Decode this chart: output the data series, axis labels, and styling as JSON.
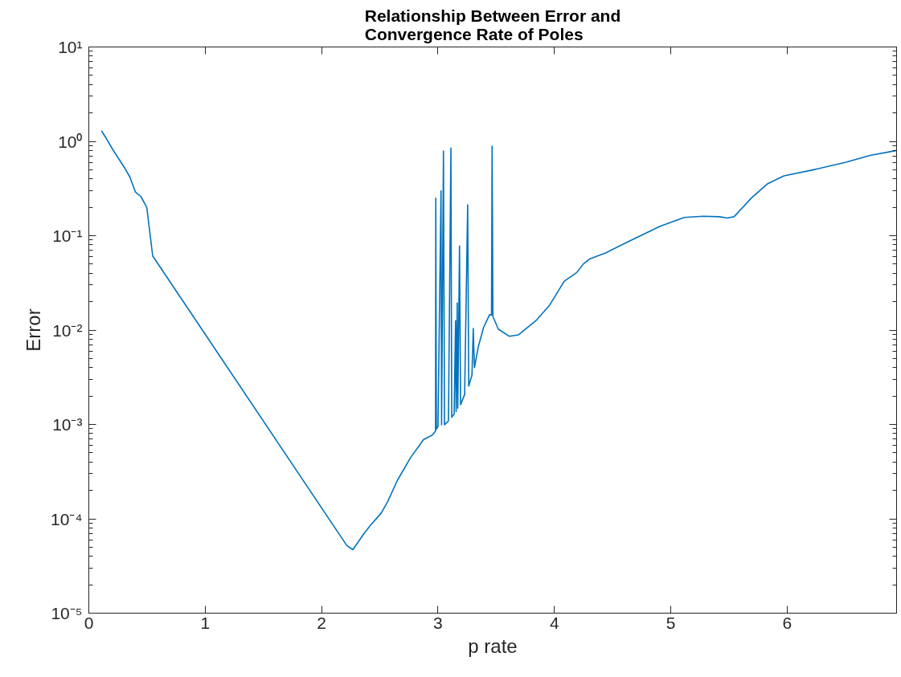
{
  "chart_data": {
    "type": "line",
    "title": "Relationship Between Error and\nConvergence Rate of Poles",
    "xlabel": "p rate",
    "ylabel": "Error",
    "log": "y",
    "grid": false,
    "marker": "none",
    "line_style": "solid",
    "xlim": [
      0,
      6.94
    ],
    "ylim": [
      1e-05,
      10
    ],
    "xticks": [
      0,
      1,
      2,
      3,
      4,
      5,
      6
    ],
    "yticks": [
      {
        "value": 1e-05,
        "label": "10⁻⁵"
      },
      {
        "value": 0.0001,
        "label": "10⁻⁴"
      },
      {
        "value": 0.001,
        "label": "10⁻³"
      },
      {
        "value": 0.01,
        "label": "10⁻²"
      },
      {
        "value": 0.1,
        "label": "10⁻¹"
      },
      {
        "value": 1,
        "label": "10⁰"
      },
      {
        "value": 10,
        "label": "10¹"
      }
    ],
    "series": [
      {
        "color": "#0072bd",
        "x": [
          0.109,
          0.151,
          0.208,
          0.301,
          0.352,
          0.401,
          0.447,
          0.498,
          0.549,
          2.217,
          2.269,
          2.361,
          2.419,
          2.512,
          2.565,
          2.651,
          2.762,
          2.875,
          2.951,
          2.979,
          2.981,
          2.986,
          3.0,
          3.026,
          3.031,
          3.047,
          3.056,
          3.09,
          3.111,
          3.118,
          3.139,
          3.151,
          3.156,
          3.165,
          3.17,
          3.185,
          3.194,
          3.229,
          3.255,
          3.264,
          3.292,
          3.303,
          3.313,
          3.347,
          3.391,
          3.444,
          3.46,
          3.465,
          3.472,
          3.519,
          3.611,
          3.692,
          3.842,
          3.958,
          4.085,
          4.19,
          4.248,
          4.306,
          4.444,
          4.63,
          4.908,
          5.116,
          5.278,
          5.417,
          5.486,
          5.544,
          5.694,
          5.833,
          5.972,
          6.227,
          6.505,
          6.713,
          6.94
        ],
        "values": [
          1.29,
          1.07,
          0.81,
          0.54,
          0.42,
          0.29,
          0.26,
          0.2,
          0.061,
          5.2e-05,
          4.7e-05,
          6.9e-05,
          8.5e-05,
          0.000115,
          0.00015,
          0.000255,
          0.00044,
          0.00069,
          0.00077,
          0.00085,
          0.25,
          0.00089,
          0.00095,
          0.3,
          0.00099,
          0.79,
          0.00099,
          0.00109,
          0.85,
          0.00119,
          0.00129,
          0.0126,
          0.00137,
          0.0194,
          0.00149,
          0.078,
          0.00162,
          0.00208,
          0.212,
          0.00255,
          0.00334,
          0.0104,
          0.004,
          0.0067,
          0.0106,
          0.0146,
          0.0144,
          0.89,
          0.0139,
          0.0102,
          0.0086,
          0.0089,
          0.0126,
          0.0183,
          0.033,
          0.0405,
          0.05,
          0.057,
          0.066,
          0.086,
          0.126,
          0.156,
          0.161,
          0.159,
          0.154,
          0.159,
          0.252,
          0.356,
          0.43,
          0.5,
          0.6,
          0.71,
          0.8
        ]
      }
    ]
  }
}
